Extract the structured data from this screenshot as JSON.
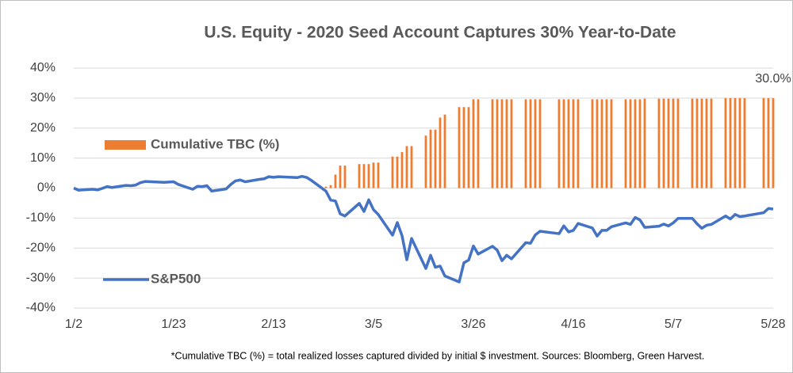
{
  "chart_data": {
    "type": "combo",
    "title": "U.S. Equity - 2020 Seed Account Captures 30% Year-to-Date",
    "note": "*Cumulative TBC (%) = total realized losses captured divided by initial $ investment. Sources: Bloomberg, Green Harvest.",
    "x": [
      "1/2",
      "1/3",
      "1/6",
      "1/7",
      "1/8",
      "1/9",
      "1/10",
      "1/13",
      "1/14",
      "1/15",
      "1/16",
      "1/17",
      "1/21",
      "1/22",
      "1/23",
      "1/24",
      "1/27",
      "1/28",
      "1/29",
      "1/30",
      "1/31",
      "2/3",
      "2/4",
      "2/5",
      "2/6",
      "2/7",
      "2/10",
      "2/11",
      "2/12",
      "2/13",
      "2/14",
      "2/18",
      "2/19",
      "2/20",
      "2/21",
      "2/24",
      "2/25",
      "2/26",
      "2/27",
      "2/28",
      "3/2",
      "3/3",
      "3/4",
      "3/5",
      "3/6",
      "3/9",
      "3/10",
      "3/11",
      "3/12",
      "3/13",
      "3/16",
      "3/17",
      "3/18",
      "3/19",
      "3/20",
      "3/23",
      "3/24",
      "3/25",
      "3/26",
      "3/27",
      "3/30",
      "3/31",
      "4/1",
      "4/2",
      "4/3",
      "4/6",
      "4/7",
      "4/8",
      "4/9",
      "4/13",
      "4/14",
      "4/15",
      "4/16",
      "4/17",
      "4/20",
      "4/21",
      "4/22",
      "4/23",
      "4/24",
      "4/27",
      "4/28",
      "4/29",
      "4/30",
      "5/1",
      "5/4",
      "5/5",
      "5/6",
      "5/7",
      "5/8",
      "5/11",
      "5/12",
      "5/13",
      "5/14",
      "5/15",
      "5/18",
      "5/19",
      "5/20",
      "5/21",
      "5/22",
      "5/26",
      "5/27",
      "5/28"
    ],
    "xlim": [
      "1/2",
      "5/28"
    ],
    "xticks": [
      "1/2",
      "1/23",
      "2/13",
      "3/5",
      "3/26",
      "4/16",
      "5/7",
      "5/28"
    ],
    "ylim": [
      -40,
      40
    ],
    "yticks": [
      {
        "value": -40,
        "label": "-40%"
      },
      {
        "value": -30,
        "label": "-30%"
      },
      {
        "value": -20,
        "label": "-20%"
      },
      {
        "value": -10,
        "label": "-10%"
      },
      {
        "value": 0,
        "label": "0%"
      },
      {
        "value": 10,
        "label": "10%"
      },
      {
        "value": 20,
        "label": "20%"
      },
      {
        "value": 30,
        "label": "30%"
      },
      {
        "value": 40,
        "label": "40%"
      }
    ],
    "grid": true,
    "series": [
      {
        "name": "Cumulative TBC (%)",
        "type": "bar",
        "color": "#ed7d31",
        "values": [
          0,
          0,
          0,
          0,
          0,
          0,
          0,
          0,
          0,
          0,
          0,
          0,
          0,
          0,
          0,
          0,
          0,
          0,
          0,
          0,
          0,
          0,
          0,
          0,
          0,
          0,
          0,
          0,
          0,
          0,
          0,
          0,
          0,
          0,
          0,
          0.5,
          1,
          4.5,
          7.5,
          7.5,
          8,
          8,
          8,
          8.5,
          8.5,
          10.5,
          10.5,
          12,
          14,
          14,
          17.5,
          19.5,
          19.5,
          23.5,
          24.5,
          27,
          27,
          27,
          29.6,
          29.6,
          29.6,
          29.6,
          29.6,
          29.6,
          29.6,
          29.6,
          29.6,
          29.6,
          29.6,
          29.6,
          29.6,
          29.6,
          29.6,
          29.6,
          29.6,
          29.6,
          29.6,
          29.6,
          29.6,
          29.6,
          29.6,
          29.6,
          29.6,
          29.8,
          29.8,
          29.8,
          29.8,
          29.8,
          29.8,
          29.8,
          29.8,
          29.8,
          29.8,
          29.8,
          30,
          30,
          30,
          30,
          30,
          30,
          30,
          30
        ],
        "value_labels": [
          null,
          null,
          null,
          null,
          null,
          null,
          null,
          null,
          null,
          null,
          null,
          null,
          null,
          null,
          null,
          null,
          null,
          null,
          null,
          null,
          null,
          null,
          null,
          null,
          null,
          null,
          null,
          null,
          null,
          null,
          null,
          null,
          null,
          null,
          null,
          null,
          null,
          null,
          null,
          null,
          null,
          null,
          null,
          null,
          null,
          null,
          null,
          null,
          null,
          null,
          null,
          null,
          null,
          null,
          null,
          null,
          null,
          null,
          null,
          null,
          null,
          null,
          null,
          null,
          null,
          null,
          null,
          null,
          null,
          null,
          null,
          null,
          null,
          null,
          null,
          null,
          null,
          null,
          null,
          null,
          null,
          null,
          null,
          null,
          null,
          null,
          null,
          null,
          null,
          null,
          null,
          null,
          null,
          null,
          null,
          null,
          null,
          null,
          null,
          null,
          null,
          "30.0%"
        ]
      },
      {
        "name": "S&P500",
        "type": "line",
        "color": "#4472c4",
        "values": [
          0,
          -0.7,
          -0.4,
          -0.6,
          -0.1,
          0.5,
          0.2,
          0.9,
          0.8,
          1.0,
          1.8,
          2.2,
          1.9,
          2.0,
          2.1,
          1.2,
          -0.4,
          0.6,
          0.5,
          0.8,
          -1.0,
          -0.3,
          1.2,
          2.4,
          2.7,
          2.1,
          2.9,
          3.1,
          3.8,
          3.6,
          3.8,
          3.5,
          3.9,
          3.5,
          2.5,
          -1.0,
          -4.0,
          -4.3,
          -8.6,
          -9.3,
          -5.1,
          -7.8,
          -3.9,
          -7.2,
          -8.8,
          -15.7,
          -11.5,
          -15.9,
          -23.9,
          -16.8,
          -26.8,
          -22.4,
          -26.4,
          -26.0,
          -29.3,
          -31.3,
          -24.9,
          -24.0,
          -19.3,
          -22.0,
          -19.4,
          -20.7,
          -24.2,
          -22.4,
          -23.6,
          -18.2,
          -18.4,
          -15.6,
          -14.4,
          -15.2,
          -12.6,
          -14.6,
          -14.1,
          -11.8,
          -13.3,
          -16.0,
          -14.1,
          -14.1,
          -12.9,
          -11.6,
          -12.1,
          -9.8,
          -10.6,
          -13.1,
          -12.7,
          -12.0,
          -12.6,
          -11.6,
          -10.1,
          -10.1,
          -11.9,
          -13.4,
          -12.4,
          -12.1,
          -9.3,
          -10.3,
          -8.8,
          -9.5,
          -9.3,
          -8.2,
          -6.8,
          -7.0
        ]
      }
    ]
  }
}
